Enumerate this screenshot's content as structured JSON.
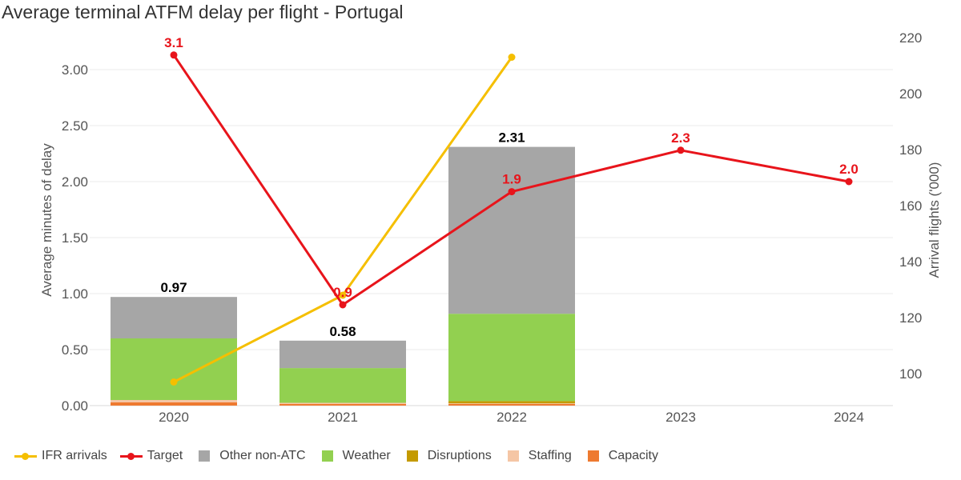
{
  "chart_data": {
    "type": "bar",
    "title": "Average terminal ATFM delay per flight - Portugal",
    "categories": [
      "2020",
      "2021",
      "2022",
      "2023",
      "2024"
    ],
    "ylabel": "Average minutes of delay",
    "y2label": "Arrival flights ('000)",
    "ylim": [
      0,
      3.3
    ],
    "y2lim": [
      89.5,
      222
    ],
    "yticks": [
      "0.00",
      "0.50",
      "1.00",
      "1.50",
      "2.00",
      "2.50",
      "3.00"
    ],
    "y2ticks": [
      "100",
      "120",
      "140",
      "160",
      "180",
      "200",
      "220"
    ],
    "stacked_series": [
      {
        "name": "Capacity",
        "color": "#ee7a30",
        "values": [
          0.03,
          0.015,
          0.015,
          null,
          null
        ]
      },
      {
        "name": "Staffing",
        "color": "#f5c6a5",
        "values": [
          0.02,
          0.01,
          0.005,
          null,
          null
        ]
      },
      {
        "name": "Disruptions",
        "color": "#c49a00",
        "values": [
          0.0,
          0.0,
          0.02,
          null,
          null
        ]
      },
      {
        "name": "Weather",
        "color": "#92d050",
        "values": [
          0.55,
          0.31,
          0.78,
          null,
          null
        ]
      },
      {
        "name": "Other non-ATC",
        "color": "#a6a6a6",
        "values": [
          0.37,
          0.245,
          1.49,
          null,
          null
        ]
      }
    ],
    "totals": [
      "0.97",
      "0.58",
      "2.31",
      null,
      null
    ],
    "line_series": [
      {
        "name": "IFR arrivals",
        "color": "#f5bf00",
        "axis": "right",
        "values": [
          97,
          128,
          213,
          null,
          null
        ],
        "labels": null
      },
      {
        "name": "Target",
        "color": "#e8141b",
        "axis": "left",
        "values": [
          3.13,
          0.9,
          1.91,
          2.28,
          2.0
        ],
        "labels": [
          "3.1",
          "0.9",
          "1.9",
          "2.3",
          "2.0"
        ]
      }
    ],
    "legend_order": [
      "IFR arrivals",
      "Target",
      "Other non-ATC",
      "Weather",
      "Disruptions",
      "Staffing",
      "Capacity"
    ],
    "legend_position": "bottom-left",
    "grid": true
  }
}
